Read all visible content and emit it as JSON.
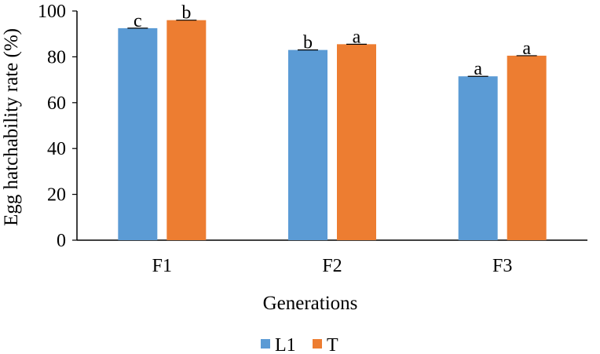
{
  "chart_data": {
    "type": "bar",
    "categories": [
      "F1",
      "F2",
      "F3"
    ],
    "series": [
      {
        "name": "L1",
        "values": [
          92.5,
          83,
          71.5
        ],
        "labels": [
          "c",
          "b",
          "a"
        ],
        "color": "#5B9BD5"
      },
      {
        "name": "T",
        "values": [
          96,
          85.5,
          80.5
        ],
        "labels": [
          "b",
          "a",
          "a"
        ],
        "color": "#ED7D31"
      }
    ],
    "xlabel": "Generations",
    "ylabel": "Egg hatchability rate (%)",
    "ylim": [
      0,
      100
    ],
    "yticks": [
      0,
      20,
      40,
      60,
      80,
      100
    ],
    "grid": false,
    "legend": "bottom"
  }
}
